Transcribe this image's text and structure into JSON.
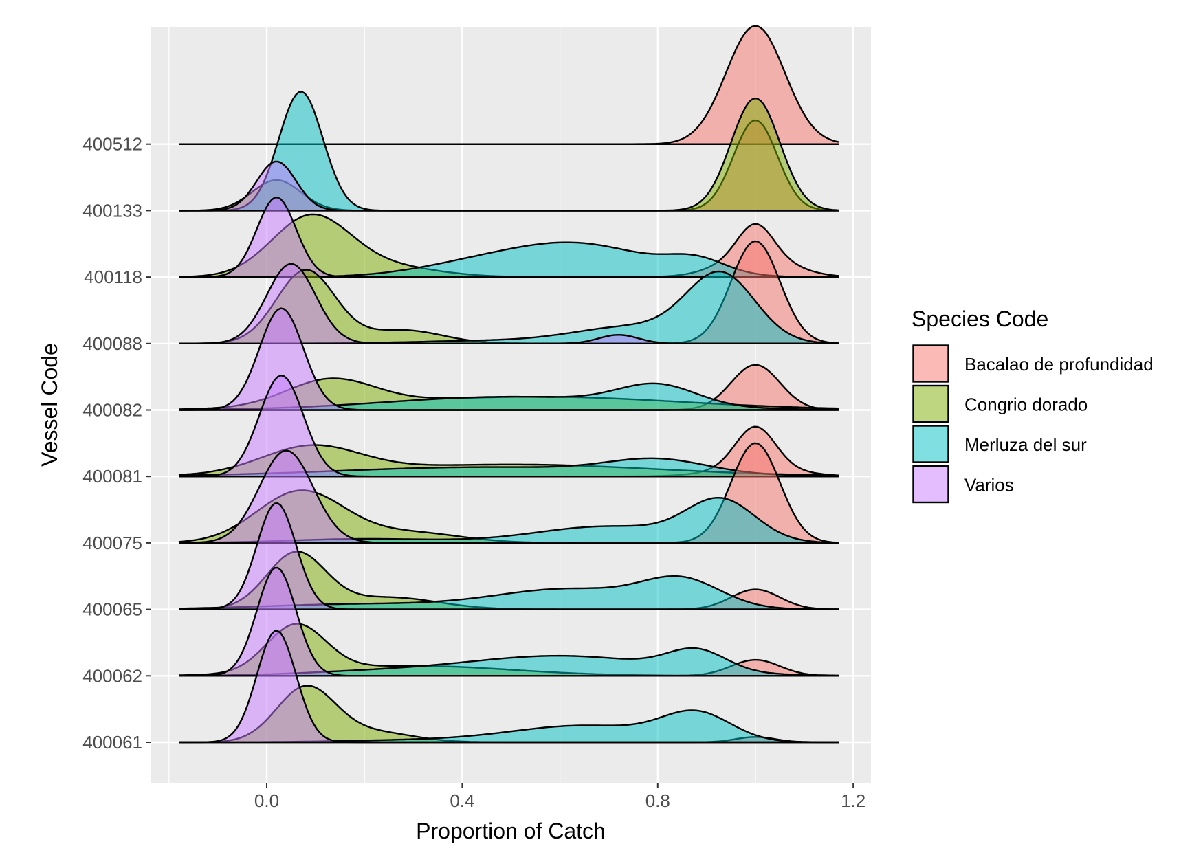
{
  "chart_data": {
    "type": "ridgeline",
    "xlabel": "Proportion of Catch",
    "ylabel": "Vessel Code",
    "xlim": [
      -0.23,
      1.23
    ],
    "x_ticks": [
      "0.0",
      "0.4",
      "0.8",
      "1.2"
    ],
    "x_tick_values": [
      0,
      0.4,
      0.8,
      1.2
    ],
    "density_range": [
      -0.18,
      1.17
    ],
    "grid": true,
    "legend": {
      "title": "Species Code",
      "position": "right"
    },
    "species": [
      {
        "name": "Bacalao de profundidad",
        "color": "#F8766D"
      },
      {
        "name": "Congrio dorado",
        "color": "#7CAE00"
      },
      {
        "name": "Merluza del sur",
        "color": "#00BFC4"
      },
      {
        "name": "Varios",
        "color": "#C77CFF"
      }
    ],
    "density_note_units": "density peaks as [center, spread, height in row spacings]",
    "vessels": [
      {
        "code": "400512",
        "densities": {
          "Bacalao de profundidad": [
            [
              1.0,
              0.06,
              1.78
            ]
          ],
          "Congrio dorado": [],
          "Merluza del sur": [],
          "Varios": []
        }
      },
      {
        "code": "400133",
        "densities": {
          "Bacalao de profundidad": [
            [
              1.0,
              0.045,
              1.36
            ]
          ],
          "Congrio dorado": [
            [
              1.0,
              0.05,
              1.69
            ],
            [
              0.02,
              0.05,
              0.46
            ]
          ],
          "Merluza del sur": [
            [
              0.07,
              0.045,
              1.79
            ]
          ],
          "Varios": [
            [
              0.02,
              0.04,
              0.74
            ]
          ]
        }
      },
      {
        "code": "400118",
        "densities": {
          "Bacalao de profundidad": [
            [
              1.0,
              0.035,
              0.45
            ],
            [
              1.0,
              0.07,
              0.35
            ]
          ],
          "Congrio dorado": [
            [
              0.09,
              0.08,
              0.9
            ],
            [
              0.25,
              0.1,
              0.15
            ]
          ],
          "Merluza del sur": [
            [
              0.63,
              0.15,
              0.5
            ],
            [
              0.4,
              0.12,
              0.12
            ],
            [
              0.88,
              0.06,
              0.2
            ]
          ],
          "Varios": [
            [
              0.02,
              0.04,
              1.2
            ]
          ]
        }
      },
      {
        "code": "400088",
        "densities": {
          "Bacalao de profundidad": [
            [
              1.0,
              0.05,
              1.54
            ]
          ],
          "Congrio dorado": [
            [
              0.08,
              0.06,
              1.1
            ],
            [
              0.28,
              0.08,
              0.2
            ]
          ],
          "Merluza del sur": [
            [
              0.93,
              0.07,
              1.0
            ],
            [
              0.75,
              0.12,
              0.25
            ],
            [
              0.45,
              0.15,
              0.04
            ]
          ],
          "Varios": [
            [
              0.05,
              0.05,
              1.2
            ],
            [
              0.72,
              0.04,
              0.13
            ]
          ]
        }
      },
      {
        "code": "400082",
        "densities": {
          "Bacalao de profundidad": [
            [
              1.0,
              0.05,
              0.68
            ]
          ],
          "Congrio dorado": [
            [
              0.13,
              0.09,
              0.4
            ],
            [
              0.55,
              0.3,
              0.2
            ]
          ],
          "Merluza del sur": [
            [
              0.8,
              0.08,
              0.3
            ],
            [
              0.5,
              0.25,
              0.2
            ]
          ],
          "Varios": [
            [
              0.03,
              0.045,
              1.53
            ]
          ]
        }
      },
      {
        "code": "400081",
        "densities": {
          "Bacalao de profundidad": [
            [
              1.0,
              0.04,
              0.6
            ],
            [
              1.0,
              0.08,
              0.15
            ]
          ],
          "Congrio dorado": [
            [
              0.09,
              0.1,
              0.4
            ],
            [
              0.5,
              0.3,
              0.18
            ]
          ],
          "Merluza del sur": [
            [
              0.8,
              0.1,
              0.2
            ],
            [
              0.45,
              0.3,
              0.14
            ]
          ],
          "Varios": [
            [
              0.03,
              0.045,
              1.52
            ]
          ]
        }
      },
      {
        "code": "400075",
        "densities": {
          "Bacalao de profundidad": [
            [
              1.0,
              0.05,
              1.5
            ]
          ],
          "Congrio dorado": [
            [
              0.07,
              0.09,
              0.78
            ],
            [
              0.3,
              0.1,
              0.15
            ]
          ],
          "Merluza del sur": [
            [
              0.93,
              0.07,
              0.6
            ],
            [
              0.7,
              0.15,
              0.25
            ],
            [
              0.2,
              0.15,
              0.06
            ]
          ],
          "Varios": [
            [
              0.04,
              0.055,
              1.39
            ]
          ]
        }
      },
      {
        "code": "400065",
        "densities": {
          "Bacalao de profundidad": [
            [
              1.0,
              0.05,
              0.3
            ]
          ],
          "Congrio dorado": [
            [
              0.06,
              0.06,
              0.84
            ],
            [
              0.25,
              0.1,
              0.18
            ]
          ],
          "Merluza del sur": [
            [
              0.85,
              0.08,
              0.4
            ],
            [
              0.62,
              0.15,
              0.3
            ],
            [
              0.2,
              0.2,
              0.08
            ]
          ],
          "Varios": [
            [
              0.02,
              0.04,
              1.6
            ]
          ]
        }
      },
      {
        "code": "400062",
        "densities": {
          "Bacalao de profundidad": [
            [
              1.0,
              0.05,
              0.24
            ]
          ],
          "Congrio dorado": [
            [
              0.06,
              0.06,
              0.71
            ],
            [
              0.3,
              0.2,
              0.15
            ]
          ],
          "Merluza del sur": [
            [
              0.88,
              0.06,
              0.3
            ],
            [
              0.6,
              0.2,
              0.3
            ],
            [
              0.2,
              0.15,
              0.05
            ]
          ],
          "Varios": [
            [
              0.02,
              0.04,
              1.63
            ]
          ]
        }
      },
      {
        "code": "400061",
        "densities": {
          "Bacalao de profundidad": [
            [
              1.0,
              0.04,
              0.08
            ]
          ],
          "Congrio dorado": [
            [
              0.08,
              0.06,
              0.82
            ],
            [
              0.22,
              0.08,
              0.15
            ]
          ],
          "Merluza del sur": [
            [
              0.88,
              0.07,
              0.4
            ],
            [
              0.65,
              0.15,
              0.25
            ],
            [
              0.3,
              0.15,
              0.03
            ]
          ],
          "Varios": [
            [
              0.02,
              0.04,
              1.68
            ]
          ]
        }
      }
    ]
  }
}
